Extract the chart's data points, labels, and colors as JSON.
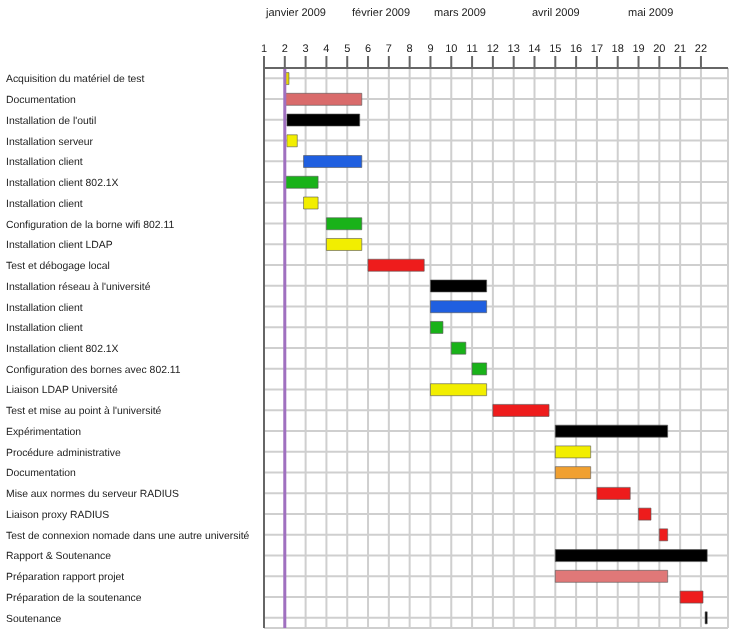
{
  "chart_data": {
    "type": "bar",
    "orientation": "horizontal",
    "categories": [
      "Acquisition du matériel de test",
      "Documentation",
      "Installation de l'outil",
      "Installation serveur",
      "Installation client",
      "Installation client 802.1X",
      "Installation client",
      "Configuration de la borne wifi 802.11",
      "Installation client LDAP",
      "Test et débogage local",
      "Installation réseau à l'université",
      "Installation client",
      "Installation client",
      "Installation client 802.1X",
      "Configuration des bornes avec 802.11",
      "Liaison LDAP Université",
      "Test et mise au point à l'université",
      "Expérimentation",
      "Procédure administrative",
      "Documentation",
      "Mise aux normes du serveur RADIUS",
      "Liaison proxy RADIUS",
      "Test de connexion nomade dans une autre université",
      "Rapport & Soutenance",
      "Préparation rapport projet",
      "Préparation de la soutenance",
      "Soutenance"
    ],
    "base": [
      2.0,
      2.0,
      2.1,
      2.1,
      2.9,
      2.0,
      2.9,
      4.0,
      4.0,
      6.0,
      9.0,
      9.0,
      9.0,
      10.0,
      11.0,
      9.0,
      12.0,
      15.0,
      15.0,
      15.0,
      17.0,
      19.0,
      20.0,
      15.0,
      15.0,
      21.0,
      22.2
    ],
    "values": [
      0.2,
      3.7,
      3.5,
      0.5,
      2.8,
      1.6,
      0.7,
      1.7,
      1.7,
      2.7,
      2.7,
      2.7,
      0.6,
      0.7,
      0.7,
      2.7,
      2.7,
      5.4,
      1.7,
      1.7,
      1.6,
      0.6,
      0.4,
      7.3,
      5.4,
      1.1,
      0.1
    ],
    "colors": [
      "#e8d800",
      "#d96b6b",
      "#000000",
      "#f2ee00",
      "#1f5fe0",
      "#19b219",
      "#f2ee00",
      "#19b219",
      "#f2ee00",
      "#ee1c1c",
      "#000000",
      "#1f5fe0",
      "#19b219",
      "#19b219",
      "#19b219",
      "#f2ee00",
      "#ee1c1c",
      "#000000",
      "#f2ee00",
      "#f0a030",
      "#ee1c1c",
      "#ee1c1c",
      "#ee1c1c",
      "#000000",
      "#e07878",
      "#ee1c1c",
      "#000000"
    ],
    "xlim": [
      1,
      23.3
    ],
    "xticks": [
      1,
      2,
      3,
      4,
      5,
      6,
      7,
      8,
      9,
      10,
      11,
      12,
      13,
      14,
      15,
      16,
      17,
      18,
      19,
      20,
      21,
      22
    ],
    "annotations": [
      "janvier 2009",
      "février 2009",
      "mars 2009",
      "avril 2009",
      "mai 2009"
    ],
    "ref_lines": [
      {
        "axis": "x",
        "value": 2.0,
        "color": "#a070c0"
      }
    ],
    "grid": true,
    "legend": false
  }
}
